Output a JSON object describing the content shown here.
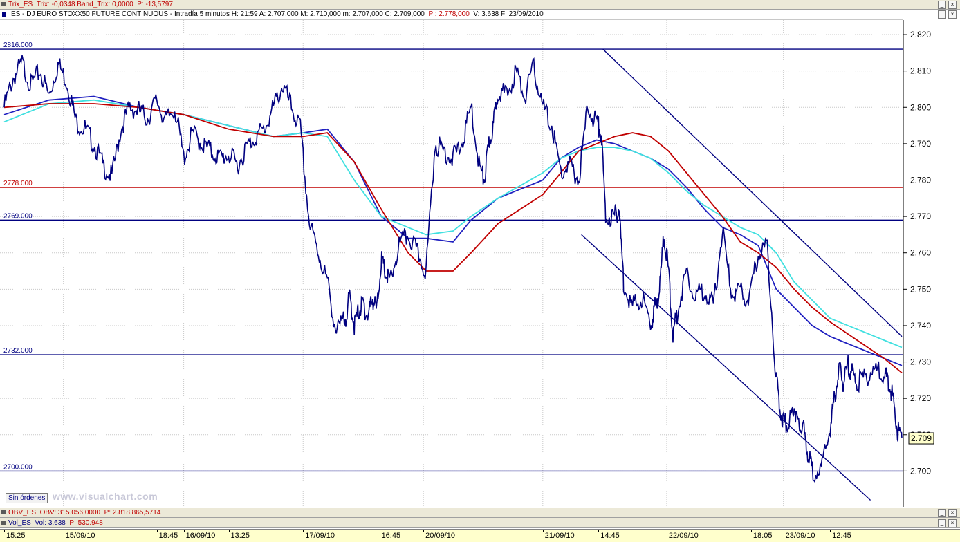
{
  "indicator_bar": {
    "text_name": "Trix_ES",
    "text_values": "Trix: -0,0348  Band_Trix: 0,0000",
    "text_p": "P: -13,5797"
  },
  "title_bar": {
    "text": "ES - DJ EURO STOXX50 FUTURE CONTINUOUS - Intradía 5 minutos  H: 21:59  A: 2.707,000  M: 2.710,000  m: 2.707,000  C: 2.709,000",
    "text_p": "P : 2.778,000",
    "text_tail": "V: 3.638  F: 23/09/2010"
  },
  "obv_bar": {
    "name": "OBV_ES",
    "values": "OBV: 315.056,0000",
    "p": "P: 2.818.865,5714"
  },
  "vol_bar": {
    "name": "Vol_ES",
    "values": "Vol: 3.638",
    "p": "P: 530.948"
  },
  "orders_button": "Sin órdenes",
  "watermark": "www.visualchart.com",
  "colors": {
    "price": "#000080",
    "price_black": "#000000",
    "ma_fast": "#2020c0",
    "ma_cyan": "#40e0e0",
    "ma_red": "#c00000",
    "hline_blue": "#000080",
    "hline_red": "#c00000",
    "axis_bg": "#ffffcc"
  },
  "chart_data": {
    "type": "line",
    "title": "ES - DJ EURO STOXX50 FUTURE CONTINUOUS - Intradía 5 minutos",
    "ylim": [
      2690,
      2824
    ],
    "yticks": [
      2700,
      2710,
      2720,
      2730,
      2740,
      2750,
      2760,
      2770,
      2780,
      2790,
      2800,
      2810,
      2820
    ],
    "ytick_labels": [
      "2.700",
      "2.710",
      "2.720",
      "2.730",
      "2.740",
      "2.750",
      "2.760",
      "2.770",
      "2.780",
      "2.790",
      "2.800",
      "2.810",
      "2.820"
    ],
    "last_price_label": "2.709",
    "last_price": 2709,
    "x_labels": [
      "15:25",
      "15/09/10",
      "18:45",
      "16/09/10",
      "13:25",
      "17/09/10",
      "16:45",
      "20/09/10",
      "21/09/10",
      "14:45",
      "22/09/10",
      "18:05",
      "23/09/10",
      "12:45"
    ],
    "x_label_pos": [
      0.0,
      0.066,
      0.17,
      0.2,
      0.25,
      0.333,
      0.418,
      0.467,
      0.6,
      0.662,
      0.738,
      0.832,
      0.868,
      0.92
    ],
    "day_separators": [
      0.066,
      0.2,
      0.333,
      0.467,
      0.6,
      0.738,
      0.868
    ],
    "horizontal_levels": [
      {
        "label": "2816.000",
        "value": 2816,
        "color": "#000080"
      },
      {
        "label": "2778.000",
        "value": 2778,
        "color": "#c00000"
      },
      {
        "label": "2769.000",
        "value": 2769,
        "color": "#000080"
      },
      {
        "label": "2732.000",
        "value": 2732,
        "color": "#000080"
      },
      {
        "label": "2700.000",
        "value": 2700,
        "color": "#000080"
      }
    ],
    "trendlines": [
      {
        "x1": 0.667,
        "y1": 2816,
        "x2": 1.0,
        "y2": 2737,
        "color": "#000080"
      },
      {
        "x1": 0.643,
        "y1": 2765,
        "x2": 0.965,
        "y2": 2692,
        "color": "#000080"
      }
    ],
    "price_series": {
      "name": "",
      "x": [
        0.0,
        0.01,
        0.02,
        0.03,
        0.04,
        0.05,
        0.06,
        0.07,
        0.08,
        0.09,
        0.1,
        0.11,
        0.12,
        0.13,
        0.14,
        0.15,
        0.16,
        0.17,
        0.18,
        0.19,
        0.2,
        0.21,
        0.22,
        0.23,
        0.24,
        0.25,
        0.26,
        0.27,
        0.28,
        0.29,
        0.3,
        0.31,
        0.32,
        0.33,
        0.34,
        0.35,
        0.36,
        0.37,
        0.38,
        0.385,
        0.39,
        0.395,
        0.4,
        0.405,
        0.41,
        0.415,
        0.42,
        0.425,
        0.43,
        0.44,
        0.45,
        0.46,
        0.47,
        0.48,
        0.49,
        0.5,
        0.51,
        0.52,
        0.53,
        0.535,
        0.54,
        0.545,
        0.55,
        0.56,
        0.57,
        0.58,
        0.59,
        0.6,
        0.61,
        0.62,
        0.63,
        0.64,
        0.65,
        0.66,
        0.665,
        0.67,
        0.68,
        0.685,
        0.69,
        0.7,
        0.71,
        0.72,
        0.725,
        0.73,
        0.735,
        0.74,
        0.745,
        0.75,
        0.76,
        0.77,
        0.78,
        0.79,
        0.8,
        0.81,
        0.82,
        0.83,
        0.84,
        0.85,
        0.86,
        0.865,
        0.87,
        0.875,
        0.88,
        0.885,
        0.89,
        0.895,
        0.9,
        0.91,
        0.92,
        0.925,
        0.93,
        0.935,
        0.94,
        0.945,
        0.95,
        0.96,
        0.97,
        0.98,
        0.985,
        0.99,
        0.995,
        1.0
      ],
      "values": [
        2800,
        2808,
        2812,
        2806,
        2810,
        2803,
        2812,
        2807,
        2796,
        2794,
        2790,
        2784,
        2781,
        2794,
        2800,
        2799,
        2797,
        2802,
        2796,
        2800,
        2786,
        2793,
        2790,
        2788,
        2786,
        2787,
        2784,
        2789,
        2792,
        2794,
        2800,
        2806,
        2800,
        2794,
        2768,
        2760,
        2752,
        2738,
        2742,
        2748,
        2740,
        2744,
        2746,
        2742,
        2748,
        2744,
        2758,
        2754,
        2752,
        2762,
        2765,
        2760,
        2755,
        2790,
        2788,
        2786,
        2790,
        2800,
        2783,
        2780,
        2790,
        2795,
        2805,
        2803,
        2810,
        2803,
        2811,
        2800,
        2795,
        2782,
        2784,
        2780,
        2800,
        2796,
        2793,
        2770,
        2770,
        2772,
        2752,
        2745,
        2748,
        2740,
        2745,
        2750,
        2765,
        2755,
        2737,
        2744,
        2755,
        2748,
        2750,
        2745,
        2766,
        2749,
        2749,
        2747,
        2760,
        2762,
        2725,
        2716,
        2713,
        2714,
        2718,
        2712,
        2712,
        2705,
        2700,
        2700,
        2712,
        2720,
        2728,
        2724,
        2729,
        2727,
        2724,
        2726,
        2728,
        2726,
        2725,
        2720,
        2711,
        2709
      ]
    },
    "ma_series": [
      {
        "name": "",
        "color": "#2020c0",
        "x": [
          0.0,
          0.05,
          0.1,
          0.15,
          0.2,
          0.25,
          0.3,
          0.333,
          0.36,
          0.39,
          0.42,
          0.45,
          0.47,
          0.5,
          0.52,
          0.55,
          0.6,
          0.62,
          0.64,
          0.66,
          0.68,
          0.7,
          0.72,
          0.74,
          0.76,
          0.78,
          0.8,
          0.82,
          0.84,
          0.86,
          0.88,
          0.9,
          0.92,
          0.95,
          0.98,
          1.0
        ],
        "values": [
          2798,
          2802,
          2803,
          2800,
          2798,
          2795,
          2792,
          2793,
          2794,
          2785,
          2770,
          2764,
          2764,
          2763,
          2769,
          2775,
          2780,
          2786,
          2789,
          2791,
          2790,
          2788,
          2786,
          2783,
          2778,
          2772,
          2767,
          2765,
          2762,
          2750,
          2745,
          2740,
          2737,
          2734,
          2731,
          2729
        ]
      },
      {
        "name": "",
        "color": "#40e0e0",
        "x": [
          0.0,
          0.05,
          0.1,
          0.15,
          0.2,
          0.25,
          0.3,
          0.333,
          0.36,
          0.39,
          0.42,
          0.45,
          0.47,
          0.5,
          0.52,
          0.55,
          0.6,
          0.62,
          0.64,
          0.66,
          0.68,
          0.7,
          0.72,
          0.74,
          0.76,
          0.78,
          0.8,
          0.82,
          0.84,
          0.86,
          0.88,
          0.9,
          0.92,
          0.95,
          0.98,
          1.0
        ],
        "values": [
          2796,
          2801,
          2802,
          2800,
          2798,
          2795,
          2792,
          2793,
          2792,
          2780,
          2770,
          2767,
          2765,
          2766,
          2770,
          2775,
          2782,
          2786,
          2788,
          2789,
          2789,
          2788,
          2786,
          2782,
          2777,
          2773,
          2770,
          2767,
          2765,
          2760,
          2752,
          2747,
          2742,
          2739,
          2736,
          2734
        ]
      },
      {
        "name": "",
        "color": "#c00000",
        "x": [
          0.0,
          0.05,
          0.1,
          0.15,
          0.2,
          0.25,
          0.3,
          0.333,
          0.36,
          0.39,
          0.42,
          0.45,
          0.47,
          0.5,
          0.52,
          0.55,
          0.6,
          0.62,
          0.64,
          0.66,
          0.68,
          0.7,
          0.72,
          0.74,
          0.76,
          0.78,
          0.8,
          0.82,
          0.84,
          0.86,
          0.88,
          0.9,
          0.92,
          0.95,
          0.98,
          1.0
        ],
        "values": [
          2800,
          2801,
          2801,
          2800,
          2798,
          2794,
          2792,
          2792,
          2793,
          2785,
          2772,
          2760,
          2755,
          2755,
          2760,
          2768,
          2776,
          2782,
          2788,
          2790,
          2792,
          2793,
          2792,
          2788,
          2782,
          2776,
          2770,
          2763,
          2760,
          2756,
          2750,
          2745,
          2741,
          2736,
          2731,
          2727
        ]
      }
    ]
  }
}
